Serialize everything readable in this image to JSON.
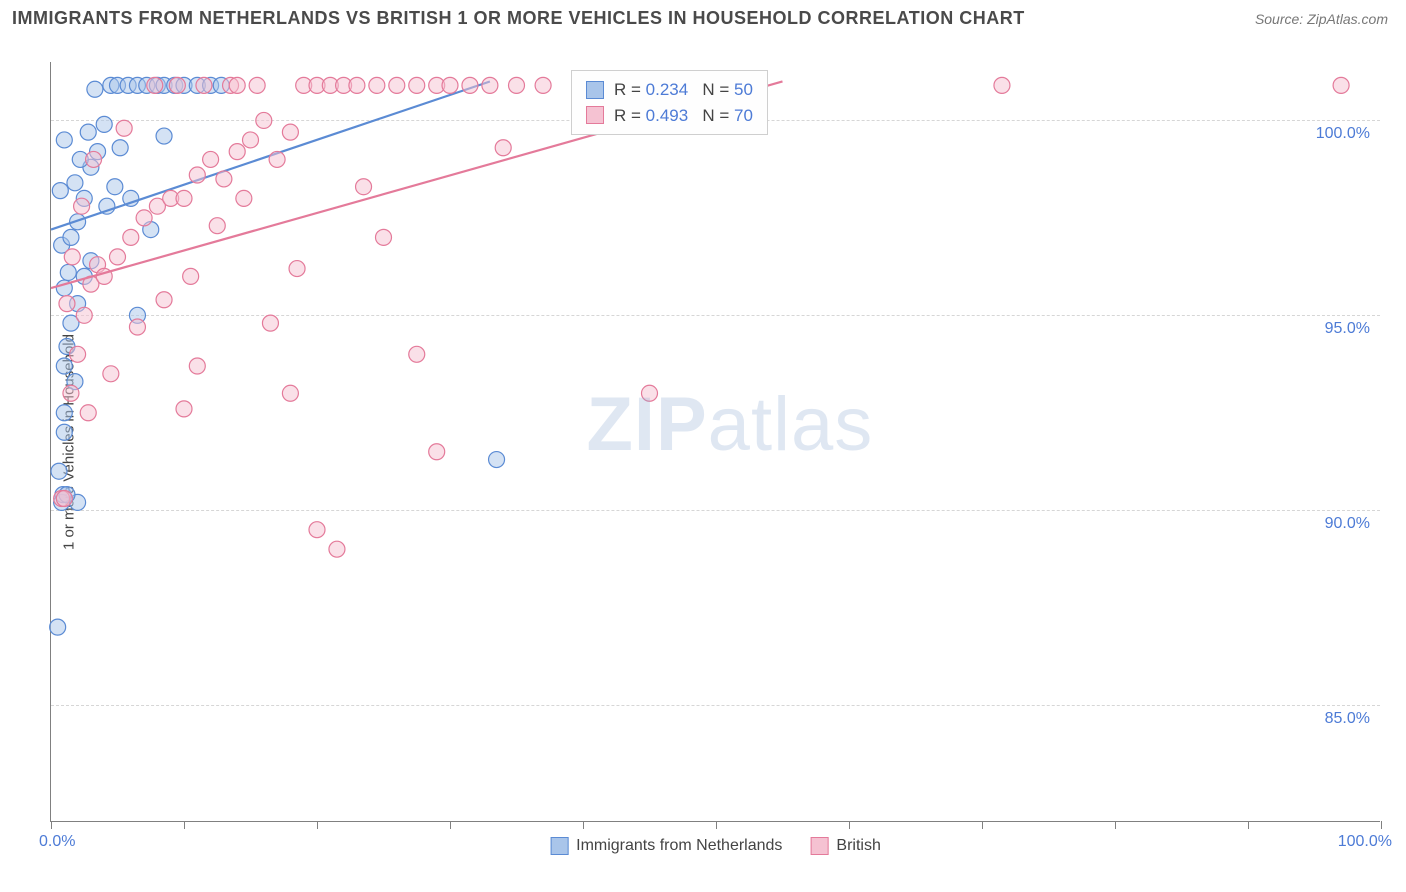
{
  "title": "IMMIGRANTS FROM NETHERLANDS VS BRITISH 1 OR MORE VEHICLES IN HOUSEHOLD CORRELATION CHART",
  "source_label": "Source: ZipAtlas.com",
  "ylabel": "1 or more Vehicles in Household",
  "watermark_a": "ZIP",
  "watermark_b": "atlas",
  "chart": {
    "type": "scatter",
    "xlim": [
      0,
      100
    ],
    "ylim": [
      82,
      101.5
    ],
    "yticks": [
      85,
      90,
      95,
      100
    ],
    "ytick_labels": [
      "85.0%",
      "90.0%",
      "95.0%",
      "100.0%"
    ],
    "xticks": [
      0,
      10,
      20,
      30,
      40,
      50,
      60,
      70,
      80,
      90,
      100
    ],
    "x_min_label": "0.0%",
    "x_max_label": "100.0%",
    "grid_color": "#d6d6d6",
    "axis_color": "#808080",
    "background_color": "#ffffff",
    "marker_radius": 8,
    "marker_stroke_width": 1.2,
    "marker_fill_opacity": 0.25,
    "line_width": 2.2,
    "series": [
      {
        "name": "Immigrants from Netherlands",
        "color_stroke": "#5b8bd4",
        "color_fill": "#a9c5ea",
        "R": 0.234,
        "N": 50,
        "trend": {
          "x1": 0,
          "y1": 97.2,
          "x2": 33,
          "y2": 101.0
        },
        "points": [
          [
            0.5,
            87.0
          ],
          [
            0.8,
            90.2
          ],
          [
            0.9,
            90.4
          ],
          [
            1.0,
            92.0
          ],
          [
            1.0,
            92.5
          ],
          [
            1.0,
            93.7
          ],
          [
            1.2,
            94.2
          ],
          [
            1.0,
            95.7
          ],
          [
            1.3,
            96.1
          ],
          [
            0.8,
            96.8
          ],
          [
            1.5,
            97.0
          ],
          [
            2.0,
            97.4
          ],
          [
            0.7,
            98.2
          ],
          [
            1.8,
            98.4
          ],
          [
            2.5,
            98.0
          ],
          [
            3.0,
            98.8
          ],
          [
            2.2,
            99.0
          ],
          [
            3.5,
            99.2
          ],
          [
            1.0,
            99.5
          ],
          [
            2.8,
            99.7
          ],
          [
            4.0,
            99.9
          ],
          [
            3.3,
            100.8
          ],
          [
            4.5,
            100.9
          ],
          [
            5.0,
            100.9
          ],
          [
            5.8,
            100.9
          ],
          [
            6.5,
            100.9
          ],
          [
            7.2,
            100.9
          ],
          [
            8.0,
            100.9
          ],
          [
            8.5,
            100.9
          ],
          [
            9.3,
            100.9
          ],
          [
            10.0,
            100.9
          ],
          [
            11.0,
            100.9
          ],
          [
            12.0,
            100.9
          ],
          [
            12.8,
            100.9
          ],
          [
            5.2,
            99.3
          ],
          [
            6.0,
            98.0
          ],
          [
            7.5,
            97.2
          ],
          [
            1.5,
            94.8
          ],
          [
            2.0,
            95.3
          ],
          [
            3.0,
            96.4
          ],
          [
            4.2,
            97.8
          ],
          [
            8.5,
            99.6
          ],
          [
            4.8,
            98.3
          ],
          [
            2.5,
            96.0
          ],
          [
            1.8,
            93.3
          ],
          [
            0.6,
            91.0
          ],
          [
            6.5,
            95.0
          ],
          [
            2.0,
            90.2
          ],
          [
            1.2,
            90.4
          ],
          [
            33.5,
            91.3
          ]
        ]
      },
      {
        "name": "British",
        "color_stroke": "#e47a9a",
        "color_fill": "#f5c2d2",
        "R": 0.493,
        "N": 70,
        "trend": {
          "x1": 0,
          "y1": 95.7,
          "x2": 55,
          "y2": 101.0
        },
        "points": [
          [
            0.8,
            90.3
          ],
          [
            1.0,
            90.3
          ],
          [
            1.5,
            93.0
          ],
          [
            2.0,
            94.0
          ],
          [
            2.5,
            95.0
          ],
          [
            3.0,
            95.8
          ],
          [
            3.5,
            96.3
          ],
          [
            4.0,
            96.0
          ],
          [
            5.0,
            96.5
          ],
          [
            6.0,
            97.0
          ],
          [
            7.0,
            97.5
          ],
          [
            8.0,
            97.8
          ],
          [
            9.0,
            98.0
          ],
          [
            10.0,
            98.0
          ],
          [
            11.0,
            98.6
          ],
          [
            12.0,
            99.0
          ],
          [
            13.0,
            98.5
          ],
          [
            14.0,
            99.2
          ],
          [
            15.0,
            99.5
          ],
          [
            16.0,
            100.0
          ],
          [
            17.0,
            99.0
          ],
          [
            18.0,
            99.7
          ],
          [
            19.0,
            100.9
          ],
          [
            20.0,
            100.9
          ],
          [
            21.0,
            100.9
          ],
          [
            22.0,
            100.9
          ],
          [
            23.0,
            100.9
          ],
          [
            24.5,
            100.9
          ],
          [
            26.0,
            100.9
          ],
          [
            27.5,
            100.9
          ],
          [
            29.0,
            100.9
          ],
          [
            30.0,
            100.9
          ],
          [
            31.5,
            100.9
          ],
          [
            33.0,
            100.9
          ],
          [
            35.0,
            100.9
          ],
          [
            37.0,
            100.9
          ],
          [
            42.0,
            100.9
          ],
          [
            16.5,
            94.8
          ],
          [
            18.0,
            93.0
          ],
          [
            20.0,
            89.5
          ],
          [
            21.5,
            89.0
          ],
          [
            27.5,
            94.0
          ],
          [
            29.0,
            91.5
          ],
          [
            8.5,
            95.4
          ],
          [
            10.5,
            96.0
          ],
          [
            12.5,
            97.3
          ],
          [
            14.5,
            98.0
          ],
          [
            6.5,
            94.7
          ],
          [
            4.5,
            93.5
          ],
          [
            2.8,
            92.5
          ],
          [
            1.2,
            95.3
          ],
          [
            1.6,
            96.5
          ],
          [
            2.3,
            97.8
          ],
          [
            3.2,
            99.0
          ],
          [
            5.5,
            99.8
          ],
          [
            7.8,
            100.9
          ],
          [
            9.5,
            100.9
          ],
          [
            11.5,
            100.9
          ],
          [
            13.5,
            100.9
          ],
          [
            15.5,
            100.9
          ],
          [
            45.0,
            93.0
          ],
          [
            71.5,
            100.9
          ],
          [
            97.0,
            100.9
          ],
          [
            23.5,
            98.3
          ],
          [
            25.0,
            97.0
          ],
          [
            18.5,
            96.2
          ],
          [
            11.0,
            93.7
          ],
          [
            34.0,
            99.3
          ],
          [
            14.0,
            100.9
          ],
          [
            10.0,
            92.6
          ]
        ]
      }
    ]
  },
  "legend_box": {
    "row_template": [
      "R = ",
      "   N = "
    ]
  },
  "bottom_legend": {
    "items": [
      "Immigrants from Netherlands",
      "British"
    ]
  },
  "colors": {
    "title_text": "#4a4a4a",
    "source_text": "#777777",
    "tick_text": "#4d7bd6",
    "value_text": "#4d7bd6"
  }
}
